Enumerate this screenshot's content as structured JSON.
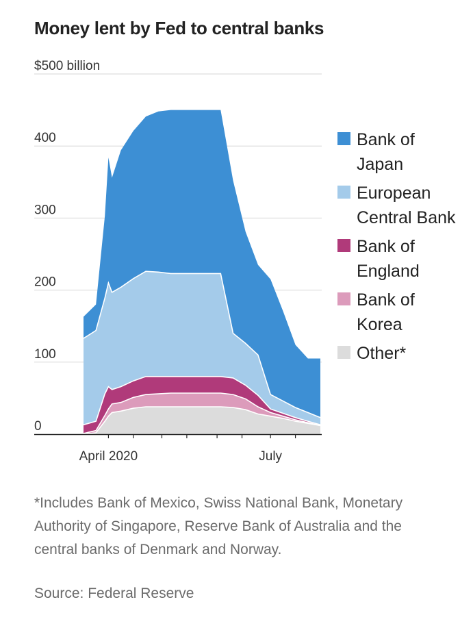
{
  "title": "Money lent by Fed to central banks",
  "note": "*Includes Bank of Mexico, Swiss National Bank, Monetary Authority of Singapore, Reserve Bank of Australia and the central banks of Denmark and Norway.",
  "source": "Source: Federal Reserve",
  "chart_data": {
    "type": "area",
    "stacked": true,
    "title": "Money lent by Fed to central banks",
    "unit": "$ billion",
    "ylim": [
      0,
      500
    ],
    "y_ticks": [
      0,
      100,
      200,
      300,
      400,
      500
    ],
    "y_tick_labels": [
      "0",
      "100",
      "200",
      "300",
      "400",
      "$500 billion"
    ],
    "x_ticks": [
      {
        "date": "2020-04-01",
        "label": "April 2020"
      },
      {
        "date": "2020-07-01",
        "label": "July"
      }
    ],
    "x_range": [
      "2020-03-18",
      "2020-07-29"
    ],
    "grid": true,
    "legend_position": "right",
    "dates": [
      "2020-03-18",
      "2020-03-25",
      "2020-03-30",
      "2020-04-01",
      "2020-04-03",
      "2020-04-08",
      "2020-04-15",
      "2020-04-22",
      "2020-04-29",
      "2020-05-06",
      "2020-05-13",
      "2020-05-20",
      "2020-05-27",
      "2020-06-03",
      "2020-06-10",
      "2020-06-17",
      "2020-06-24",
      "2020-07-01",
      "2020-07-08",
      "2020-07-15",
      "2020-07-22",
      "2020-07-29"
    ],
    "series": [
      {
        "name": "Other*",
        "color": "#dcdcdc",
        "values": [
          0,
          2,
          18,
          25,
          30,
          32,
          36,
          38,
          38,
          38,
          38,
          38,
          38,
          38,
          37,
          34,
          28,
          25,
          22,
          18,
          15,
          12
        ]
      },
      {
        "name": "Bank of Korea",
        "color": "#dc9bbb",
        "values": [
          1,
          3,
          8,
          10,
          12,
          12,
          15,
          17,
          18,
          19,
          19,
          19,
          19,
          19,
          18,
          15,
          10,
          5,
          3,
          2,
          1,
          0
        ]
      },
      {
        "name": "Bank of England",
        "color": "#b03a7a",
        "values": [
          12,
          13,
          30,
          31,
          20,
          22,
          23,
          25,
          24,
          23,
          23,
          23,
          23,
          23,
          23,
          19,
          16,
          5,
          4,
          3,
          2,
          1
        ]
      },
      {
        "name": "European Central Bank",
        "color": "#a4cbea",
        "values": [
          120,
          126,
          133,
          144,
          135,
          138,
          142,
          146,
          145,
          143,
          143,
          143,
          143,
          143,
          62,
          58,
          56,
          20,
          17,
          14,
          12,
          10
        ]
      },
      {
        "name": "Bank of Japan",
        "color": "#3d8fd4",
        "values": [
          30,
          36,
          114,
          174,
          159,
          190,
          205,
          215,
          223,
          227,
          227,
          227,
          227,
          227,
          212,
          155,
          125,
          160,
          125,
          87,
          75,
          82
        ]
      }
    ]
  }
}
